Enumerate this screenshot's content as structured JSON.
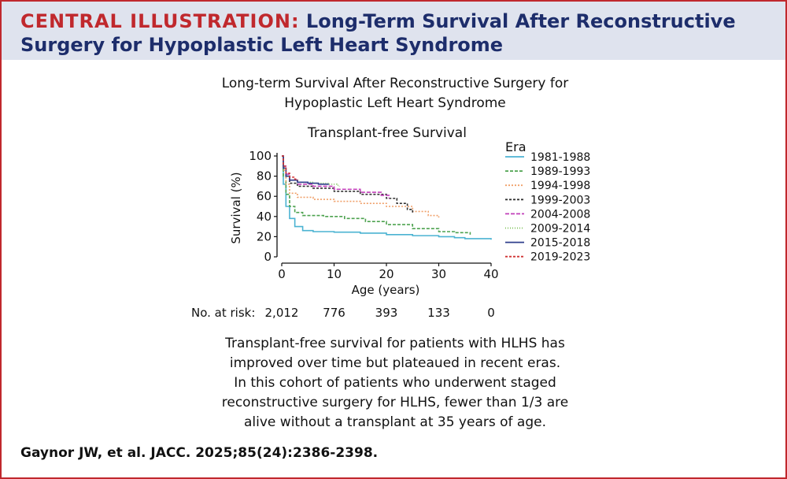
{
  "header": {
    "label": "CENTRAL ILLUSTRATION:",
    "title_line1": "Long-Term Survival After Reconstructive",
    "title_line2": "Surgery for Hypoplastic Left Heart Syndrome"
  },
  "figure": {
    "title_line1": "Long-term Survival After Reconstructive Surgery for",
    "title_line2": "Hypoplastic Left Heart Syndrome"
  },
  "chart_data": {
    "type": "line",
    "title": "Transplant-free Survival",
    "xlabel": "Age (years)",
    "ylabel": "Survival (%)",
    "xlim": [
      0,
      40
    ],
    "ylim": [
      0,
      100
    ],
    "xticks": [
      0,
      10,
      20,
      30,
      40
    ],
    "yticks": [
      0,
      20,
      40,
      60,
      80,
      100
    ],
    "grid": false,
    "legend_title": "Era",
    "legend_position": "right",
    "series": [
      {
        "name": "1981-1988",
        "color": "#4bb3d2",
        "dash": "solid",
        "x": [
          0,
          0.3,
          0.8,
          1.5,
          2.5,
          4,
          6,
          10,
          15,
          20,
          25,
          30,
          33,
          35,
          40
        ],
        "y": [
          100,
          72,
          50,
          38,
          30,
          26,
          25,
          24.5,
          23.5,
          22,
          21,
          20,
          19,
          18,
          17
        ]
      },
      {
        "name": "1989-1993",
        "color": "#4da24f",
        "dash": "4 2",
        "x": [
          0,
          0.3,
          0.8,
          1.5,
          2.5,
          4,
          8,
          12,
          16,
          20,
          25,
          30,
          33,
          36
        ],
        "y": [
          100,
          80,
          62,
          50,
          44,
          41,
          40,
          38,
          35,
          32,
          28,
          25,
          24,
          22
        ]
      },
      {
        "name": "1994-1998",
        "color": "#f0a06a",
        "dash": "2 2",
        "x": [
          0,
          0.3,
          0.8,
          1.5,
          3,
          6,
          10,
          15,
          20,
          25,
          28,
          30
        ],
        "y": [
          100,
          86,
          72,
          63,
          59,
          57,
          55,
          53,
          50,
          45,
          41,
          39
        ]
      },
      {
        "name": "1999-2003",
        "color": "#333333",
        "dash": "3 2",
        "x": [
          0,
          0.3,
          0.8,
          1.5,
          3,
          6,
          10,
          15,
          20,
          22,
          24,
          25
        ],
        "y": [
          100,
          90,
          80,
          73,
          70,
          68,
          65,
          62,
          58,
          53,
          47,
          43
        ]
      },
      {
        "name": "2004-2008",
        "color": "#c13fb9",
        "dash": "5 2",
        "x": [
          0,
          0.3,
          0.8,
          1.5,
          3,
          6,
          10,
          15,
          19,
          20.5
        ],
        "y": [
          100,
          90,
          82,
          76,
          72,
          70,
          67,
          64,
          61,
          58
        ]
      },
      {
        "name": "2009-2014",
        "color": "#7dc25a",
        "dash": "1 2",
        "x": [
          0,
          0.3,
          0.8,
          1.5,
          3,
          6,
          9,
          10.5,
          11
        ],
        "y": [
          100,
          88,
          80,
          76,
          74,
          73,
          72,
          71,
          70
        ]
      },
      {
        "name": "2015-2018",
        "color": "#2f3f8c",
        "dash": "solid",
        "x": [
          0,
          0.3,
          0.8,
          1.5,
          3,
          5,
          7,
          9
        ],
        "y": [
          100,
          88,
          80,
          76,
          74,
          73,
          72,
          72
        ]
      },
      {
        "name": "2019-2023",
        "color": "#d03333",
        "dash": "3 2",
        "x": [
          0,
          0.3,
          0.8,
          1.5,
          2.5,
          3
        ],
        "y": [
          100,
          90,
          83,
          79,
          77,
          76
        ]
      }
    ],
    "at_risk": {
      "label": "No. at risk:",
      "values": [
        "2,012",
        "776",
        "393",
        "133",
        "0"
      ]
    }
  },
  "caption": {
    "lines": [
      "Transplant-free survival for patients with HLHS has",
      "improved over time but plateaued in recent eras.",
      "In this cohort of patients who underwent staged",
      "reconstructive surgery for HLHS, fewer than 1/3 are",
      "alive without a transplant at 35 years of age."
    ]
  },
  "citation": "Gaynor JW, et al. JACC. 2025;85(24):2386-2398."
}
